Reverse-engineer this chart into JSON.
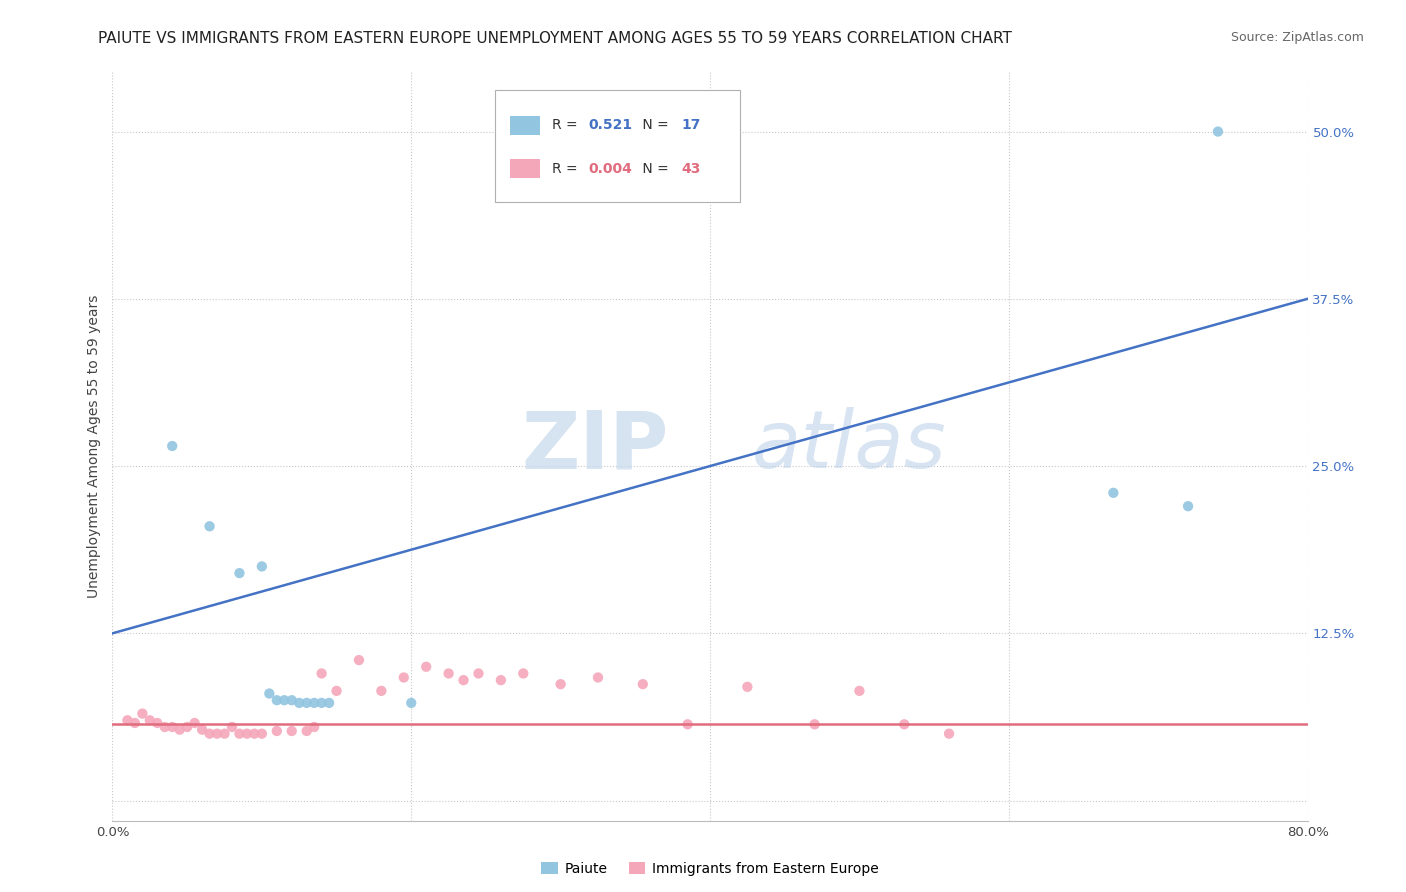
{
  "title": "PAIUTE VS IMMIGRANTS FROM EASTERN EUROPE UNEMPLOYMENT AMONG AGES 55 TO 59 YEARS CORRELATION CHART",
  "source": "Source: ZipAtlas.com",
  "ylabel_label": "Unemployment Among Ages 55 to 59 years",
  "xmin": 0.0,
  "xmax": 0.8,
  "ymin": -0.015,
  "ymax": 0.545,
  "legend_blue_r": "0.521",
  "legend_blue_n": "17",
  "legend_pink_r": "0.004",
  "legend_pink_n": "43",
  "legend_blue_label": "Paiute",
  "legend_pink_label": "Immigrants from Eastern Europe",
  "blue_color": "#92c5e0",
  "pink_color": "#f4a7b9",
  "line_blue_color": "#4472c4",
  "line_pink_color": "#e06c7e",
  "watermark_zip": "ZIP",
  "watermark_atlas": "atlas",
  "paiute_points": [
    [
      0.04,
      0.265
    ],
    [
      0.065,
      0.205
    ],
    [
      0.085,
      0.17
    ],
    [
      0.1,
      0.175
    ],
    [
      0.105,
      0.08
    ],
    [
      0.11,
      0.075
    ],
    [
      0.115,
      0.075
    ],
    [
      0.12,
      0.075
    ],
    [
      0.125,
      0.073
    ],
    [
      0.13,
      0.073
    ],
    [
      0.135,
      0.073
    ],
    [
      0.14,
      0.073
    ],
    [
      0.145,
      0.073
    ],
    [
      0.2,
      0.073
    ],
    [
      0.67,
      0.23
    ],
    [
      0.72,
      0.22
    ],
    [
      0.74,
      0.5
    ]
  ],
  "eastern_europe_points": [
    [
      0.01,
      0.06
    ],
    [
      0.015,
      0.058
    ],
    [
      0.02,
      0.065
    ],
    [
      0.025,
      0.06
    ],
    [
      0.03,
      0.058
    ],
    [
      0.035,
      0.055
    ],
    [
      0.04,
      0.055
    ],
    [
      0.045,
      0.053
    ],
    [
      0.05,
      0.055
    ],
    [
      0.055,
      0.058
    ],
    [
      0.06,
      0.053
    ],
    [
      0.065,
      0.05
    ],
    [
      0.07,
      0.05
    ],
    [
      0.075,
      0.05
    ],
    [
      0.08,
      0.055
    ],
    [
      0.085,
      0.05
    ],
    [
      0.09,
      0.05
    ],
    [
      0.095,
      0.05
    ],
    [
      0.1,
      0.05
    ],
    [
      0.11,
      0.052
    ],
    [
      0.12,
      0.052
    ],
    [
      0.13,
      0.052
    ],
    [
      0.135,
      0.055
    ],
    [
      0.14,
      0.095
    ],
    [
      0.15,
      0.082
    ],
    [
      0.165,
      0.105
    ],
    [
      0.18,
      0.082
    ],
    [
      0.195,
      0.092
    ],
    [
      0.21,
      0.1
    ],
    [
      0.225,
      0.095
    ],
    [
      0.235,
      0.09
    ],
    [
      0.245,
      0.095
    ],
    [
      0.26,
      0.09
    ],
    [
      0.275,
      0.095
    ],
    [
      0.3,
      0.087
    ],
    [
      0.325,
      0.092
    ],
    [
      0.355,
      0.087
    ],
    [
      0.385,
      0.057
    ],
    [
      0.425,
      0.085
    ],
    [
      0.47,
      0.057
    ],
    [
      0.5,
      0.082
    ],
    [
      0.53,
      0.057
    ],
    [
      0.56,
      0.05
    ]
  ],
  "blue_trendline": [
    0.0,
    0.125,
    0.8,
    0.375
  ],
  "pink_trendline": [
    0.0,
    0.057,
    0.8,
    0.057
  ],
  "background_color": "#ffffff",
  "grid_color": "#c8c8c8",
  "title_fontsize": 11,
  "label_fontsize": 10,
  "tick_fontsize": 9.5
}
